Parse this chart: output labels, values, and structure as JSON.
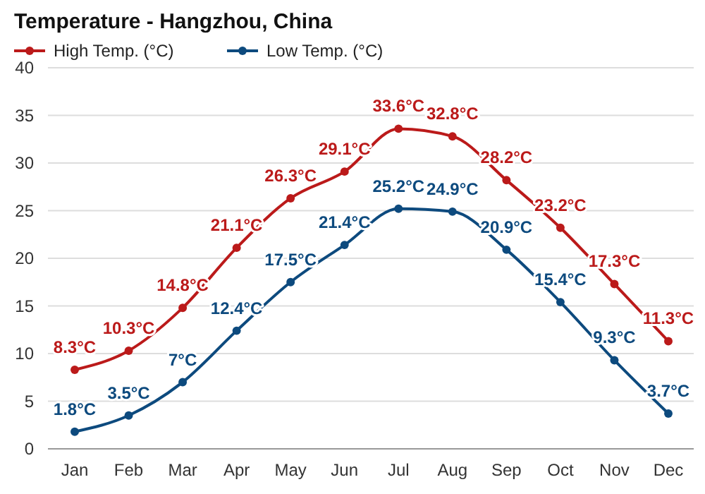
{
  "chart_data": {
    "type": "line",
    "title": "Temperature - Hangzhou, China",
    "categories": [
      "Jan",
      "Feb",
      "Mar",
      "Apr",
      "May",
      "Jun",
      "Jul",
      "Aug",
      "Sep",
      "Oct",
      "Nov",
      "Dec"
    ],
    "series": [
      {
        "name": "High Temp. (°C)",
        "color": "#bb1a1a",
        "values": [
          8.3,
          10.3,
          14.8,
          21.1,
          26.3,
          29.1,
          33.6,
          32.8,
          28.2,
          23.2,
          17.3,
          11.3
        ],
        "value_labels": [
          "8.3°C",
          "10.3°C",
          "14.8°C",
          "21.1°C",
          "26.3°C",
          "29.1°C",
          "33.6°C",
          "32.8°C",
          "28.2°C",
          "23.2°C",
          "17.3°C",
          "11.3°C"
        ]
      },
      {
        "name": "Low Temp. (°C)",
        "color": "#0d4a7e",
        "values": [
          1.8,
          3.5,
          7,
          12.4,
          17.5,
          21.4,
          25.2,
          24.9,
          20.9,
          15.4,
          9.3,
          3.7
        ],
        "value_labels": [
          "1.8°C",
          "3.5°C",
          "7°C",
          "12.4°C",
          "17.5°C",
          "21.4°C",
          "25.2°C",
          "24.9°C",
          "20.9°C",
          "15.4°C",
          "9.3°C",
          "3.7°C"
        ]
      }
    ],
    "ylim": [
      0,
      40
    ],
    "yticks": [
      0,
      5,
      10,
      15,
      20,
      25,
      30,
      35,
      40
    ],
    "grid": "y",
    "legend": "top left",
    "marker": "circle",
    "line_style": "solid"
  }
}
